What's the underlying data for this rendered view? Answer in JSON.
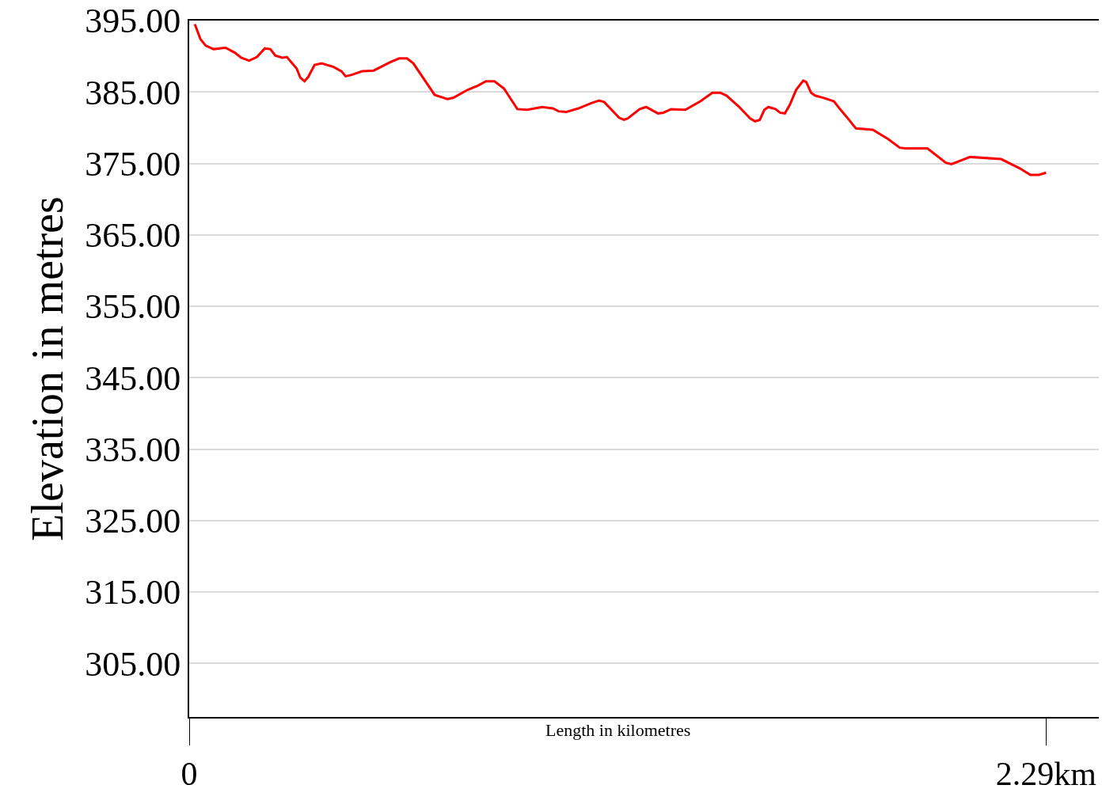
{
  "chart_data": {
    "type": "line",
    "xlabel": "Length in kilometres",
    "ylabel": "Elevation in metres",
    "xlim": [
      0,
      2.431
    ],
    "ylim": [
      297.5,
      395
    ],
    "xticks": [
      {
        "value": 0,
        "label": "0"
      },
      {
        "value": 2.29,
        "label": "2.29km"
      }
    ],
    "yticks": [
      {
        "value": 305,
        "label": "305.00"
      },
      {
        "value": 315,
        "label": "315.00"
      },
      {
        "value": 325,
        "label": "325.00"
      },
      {
        "value": 335,
        "label": "335.00"
      },
      {
        "value": 345,
        "label": "345.00"
      },
      {
        "value": 355,
        "label": "355.00"
      },
      {
        "value": 365,
        "label": "365.00"
      },
      {
        "value": 375,
        "label": "375.00"
      },
      {
        "value": 385,
        "label": "385.00"
      },
      {
        "value": 395,
        "label": "395.00"
      }
    ],
    "grid": "y",
    "marker": "none",
    "line_style": "solid",
    "series": [
      {
        "color": "#ff0000",
        "x": [
          0.015,
          0.03,
          0.044,
          0.065,
          0.097,
          0.122,
          0.139,
          0.16,
          0.181,
          0.202,
          0.217,
          0.23,
          0.249,
          0.261,
          0.287,
          0.297,
          0.308,
          0.318,
          0.335,
          0.354,
          0.386,
          0.407,
          0.418,
          0.434,
          0.462,
          0.493,
          0.538,
          0.561,
          0.582,
          0.599,
          0.656,
          0.69,
          0.706,
          0.744,
          0.772,
          0.793,
          0.816,
          0.841,
          0.877,
          0.903,
          0.943,
          0.972,
          0.987,
          1.008,
          1.04,
          1.073,
          1.095,
          1.109,
          1.149,
          1.162,
          1.172,
          1.204,
          1.221,
          1.253,
          1.267,
          1.288,
          1.326,
          1.366,
          1.398,
          1.419,
          1.436,
          1.468,
          1.499,
          1.512,
          1.525,
          1.537,
          1.548,
          1.567,
          1.579,
          1.592,
          1.605,
          1.622,
          1.641,
          1.649,
          1.662,
          1.673,
          1.7,
          1.723,
          1.741,
          1.765,
          1.777,
          1.782,
          1.827,
          1.868,
          1.899,
          1.914,
          1.973,
          2.022,
          2.037,
          2.087,
          2.17,
          2.22,
          2.248,
          2.271,
          2.29
        ],
        "values": [
          394.5,
          392.4,
          391.5,
          391.0,
          391.2,
          390.5,
          389.8,
          389.4,
          389.9,
          391.1,
          391.0,
          390.1,
          389.8,
          389.9,
          388.3,
          387.0,
          386.5,
          387.1,
          388.8,
          389.0,
          388.5,
          387.9,
          387.2,
          387.4,
          387.9,
          388.0,
          389.2,
          389.7,
          389.7,
          389.0,
          384.6,
          384.0,
          384.2,
          385.3,
          385.9,
          386.5,
          386.5,
          385.5,
          382.6,
          382.5,
          382.9,
          382.7,
          382.3,
          382.2,
          382.7,
          383.4,
          383.8,
          383.6,
          381.4,
          381.1,
          381.3,
          382.6,
          382.9,
          382.0,
          382.1,
          382.6,
          382.5,
          383.7,
          384.9,
          384.9,
          384.5,
          383.0,
          381.3,
          380.9,
          381.1,
          382.5,
          382.9,
          382.6,
          382.1,
          382.0,
          383.2,
          385.3,
          386.6,
          386.4,
          384.9,
          384.5,
          384.1,
          383.7,
          382.5,
          381.0,
          380.2,
          379.9,
          379.7,
          378.4,
          377.2,
          377.1,
          377.1,
          375.1,
          374.9,
          375.9,
          375.6,
          374.3,
          373.4,
          373.4,
          373.7
        ]
      }
    ]
  }
}
